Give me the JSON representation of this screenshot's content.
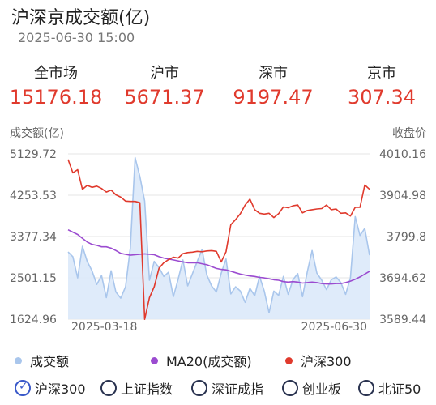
{
  "header": {
    "title": "沪深京成交额(亿)",
    "datetime": "2025-06-30 15:00"
  },
  "stats": [
    {
      "label": "全市场",
      "value": "15176.18"
    },
    {
      "label": "沪市",
      "value": "5671.37"
    },
    {
      "label": "深市",
      "value": "9197.47"
    },
    {
      "label": "京市",
      "value": "307.34"
    }
  ],
  "colors": {
    "accent_red": "#e03a2d",
    "volume_line": "#a9c6ec",
    "volume_fill": "#dbe9fa",
    "ma_line": "#9b4bd0",
    "index_line": "#e03a2d",
    "radio_selected": "#3a59c9"
  },
  "chart_data": {
    "type": "line",
    "left_axis_label": "成交额(亿)",
    "right_axis_label": "收盘价",
    "left_ticks": [
      "5129.72",
      "4253.53",
      "3377.34",
      "2501.15",
      "1624.96"
    ],
    "right_ticks": [
      "4010.16",
      "3904.98",
      "3799.8",
      "3694.62",
      "3589.44"
    ],
    "left_range": [
      1624.96,
      5129.72
    ],
    "right_range": [
      3589.44,
      4010.16
    ],
    "x_start_label": "2025-03-18",
    "x_end_label": "2025-06-30",
    "grid": true,
    "series": [
      {
        "name": "成交额",
        "axis": "left",
        "values": [
          3050,
          2950,
          2500,
          3170,
          2850,
          2650,
          2360,
          2550,
          2080,
          2650,
          2200,
          2070,
          2310,
          3130,
          5050,
          4650,
          4130,
          2450,
          2850,
          2720,
          2530,
          2620,
          2100,
          2470,
          2880,
          2330,
          2590,
          2850,
          3100,
          2560,
          2330,
          2200,
          2600,
          2900,
          2160,
          2310,
          2220,
          1980,
          2280,
          2120,
          2530,
          2220,
          1760,
          2220,
          2130,
          2530,
          2150,
          2460,
          2590,
          2100,
          2630,
          3080,
          2600,
          2450,
          2250,
          2460,
          2520,
          2400,
          2150,
          2500,
          3800,
          3400,
          3550,
          2980
        ]
      },
      {
        "name": "MA20(成交额)",
        "axis": "left",
        "values": [
          3520,
          3470,
          3420,
          3340,
          3260,
          3210,
          3190,
          3160,
          3160,
          3130,
          3080,
          3020,
          3000,
          2980,
          2990,
          3000,
          3010,
          3000,
          2990,
          2950,
          2920,
          2900,
          2880,
          2860,
          2840,
          2820,
          2820,
          2820,
          2800,
          2780,
          2740,
          2700,
          2680,
          2670,
          2640,
          2610,
          2580,
          2560,
          2540,
          2530,
          2510,
          2500,
          2480,
          2460,
          2450,
          2420,
          2410,
          2420,
          2410,
          2390,
          2400,
          2410,
          2400,
          2380,
          2370,
          2370,
          2380,
          2380,
          2400,
          2430,
          2470,
          2520,
          2580,
          2640
        ]
      },
      {
        "name": "沪深300",
        "axis": "right",
        "values": [
          3996,
          3962,
          3970,
          3920,
          3930,
          3925,
          3928,
          3922,
          3913,
          3918,
          3906,
          3900,
          3890,
          3889,
          3889,
          3886,
          3589,
          3644,
          3672,
          3719,
          3733,
          3741,
          3747,
          3745,
          3756,
          3759,
          3760,
          3762,
          3761,
          3763,
          3764,
          3762,
          3735,
          3761,
          3830,
          3843,
          3858,
          3880,
          3895,
          3868,
          3859,
          3857,
          3859,
          3848,
          3858,
          3875,
          3873,
          3878,
          3880,
          3860,
          3866,
          3868,
          3870,
          3871,
          3880,
          3868,
          3870,
          3859,
          3860,
          3852,
          3874,
          3874,
          3931,
          3920
        ]
      }
    ]
  },
  "legend": [
    {
      "label": "成交额",
      "color": "#a9c6ec"
    },
    {
      "label": "MA20(成交额)",
      "color": "#9b4bd0"
    },
    {
      "label": "沪深300",
      "color": "#e03a2d"
    }
  ],
  "tabs": [
    {
      "label": "沪深300",
      "selected": true
    },
    {
      "label": "上证指数",
      "selected": false
    },
    {
      "label": "深证成指",
      "selected": false
    },
    {
      "label": "创业板",
      "selected": false
    },
    {
      "label": "北证50",
      "selected": false
    }
  ]
}
